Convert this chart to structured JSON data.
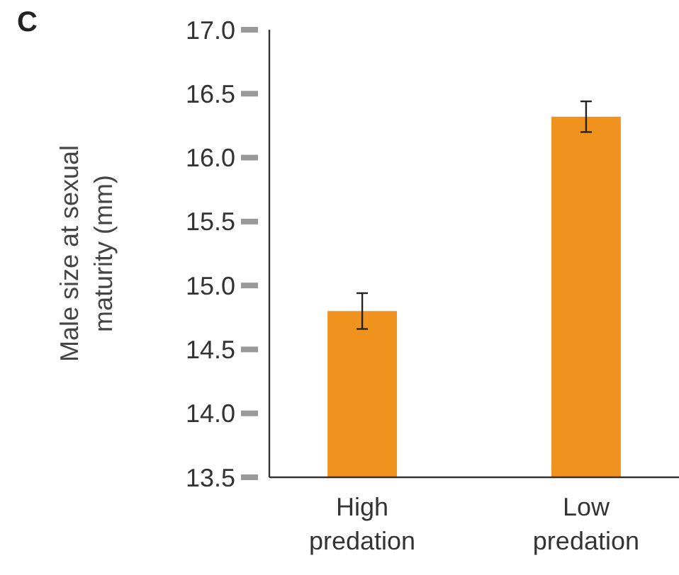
{
  "chart_data": {
    "type": "bar",
    "ylabel": "Male size at sexual maturity (mm)",
    "annotations": [
      "C"
    ],
    "categories": [
      "High predation",
      "Low predation"
    ],
    "values": [
      14.8,
      16.32
    ],
    "errors": [
      0.14,
      0.12
    ],
    "color": "#f0921e",
    "ylim": [
      13.5,
      17.0
    ],
    "yticks": [
      {
        "value": 13.5,
        "label": "13.5"
      },
      {
        "value": 14.0,
        "label": "14.0"
      },
      {
        "value": 14.5,
        "label": "14.5"
      },
      {
        "value": 15.0,
        "label": "15.0"
      },
      {
        "value": 15.5,
        "label": "15.5"
      },
      {
        "value": 16.0,
        "label": "16.0"
      },
      {
        "value": 16.5,
        "label": "16.5"
      },
      {
        "value": 17.0,
        "label": "17.0"
      }
    ]
  }
}
